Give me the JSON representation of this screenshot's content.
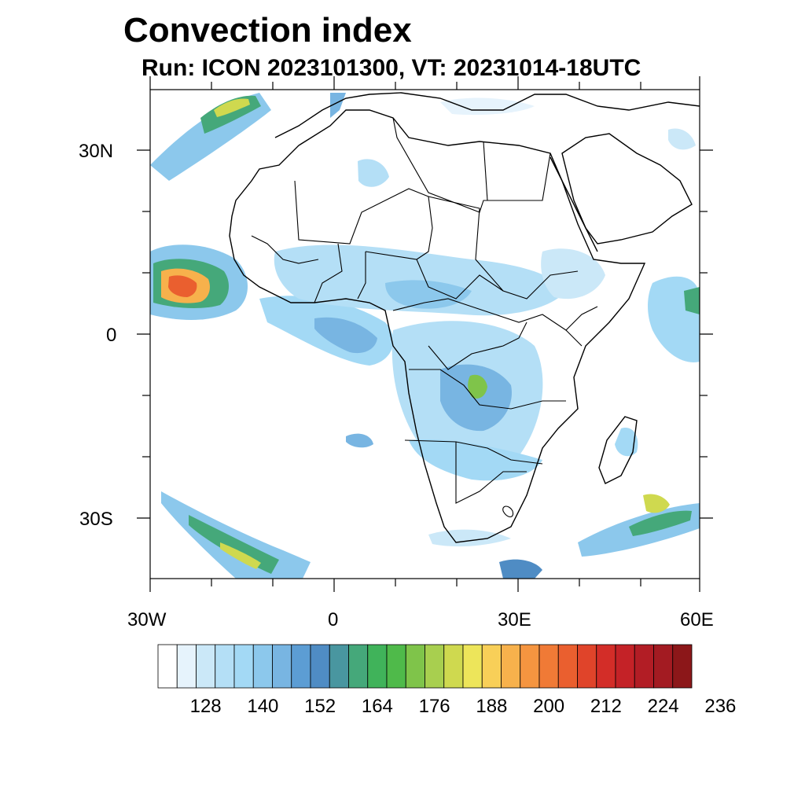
{
  "title": "Convection index",
  "subtitle": "Run: ICON 2023101300,  VT: 20231014-18UTC",
  "axes": {
    "lat_labels": [
      "30N",
      "0",
      "30S"
    ],
    "lon_labels": [
      "30W",
      "0",
      "30E",
      "60E"
    ]
  },
  "colorbar": {
    "colors": [
      "#ffffff",
      "#e6f3fc",
      "#cbe8f8",
      "#b4dff6",
      "#a3d9f5",
      "#8cc8ec",
      "#78b5e2",
      "#5c9dd4",
      "#4f8cc4",
      "#4996a0",
      "#45a87a",
      "#40b35a",
      "#4fba4a",
      "#7fc44a",
      "#a8cf4f",
      "#cfd94f",
      "#ede55a",
      "#f8cf58",
      "#f7b14c",
      "#f59540",
      "#f07a36",
      "#ea5f2f",
      "#e0442a",
      "#d32d28",
      "#c42227",
      "#b21d25",
      "#a31b22",
      "#8c1719"
    ],
    "tick_labels": [
      "128",
      "140",
      "152",
      "164",
      "176",
      "188",
      "200",
      "212",
      "224",
      "236"
    ]
  }
}
